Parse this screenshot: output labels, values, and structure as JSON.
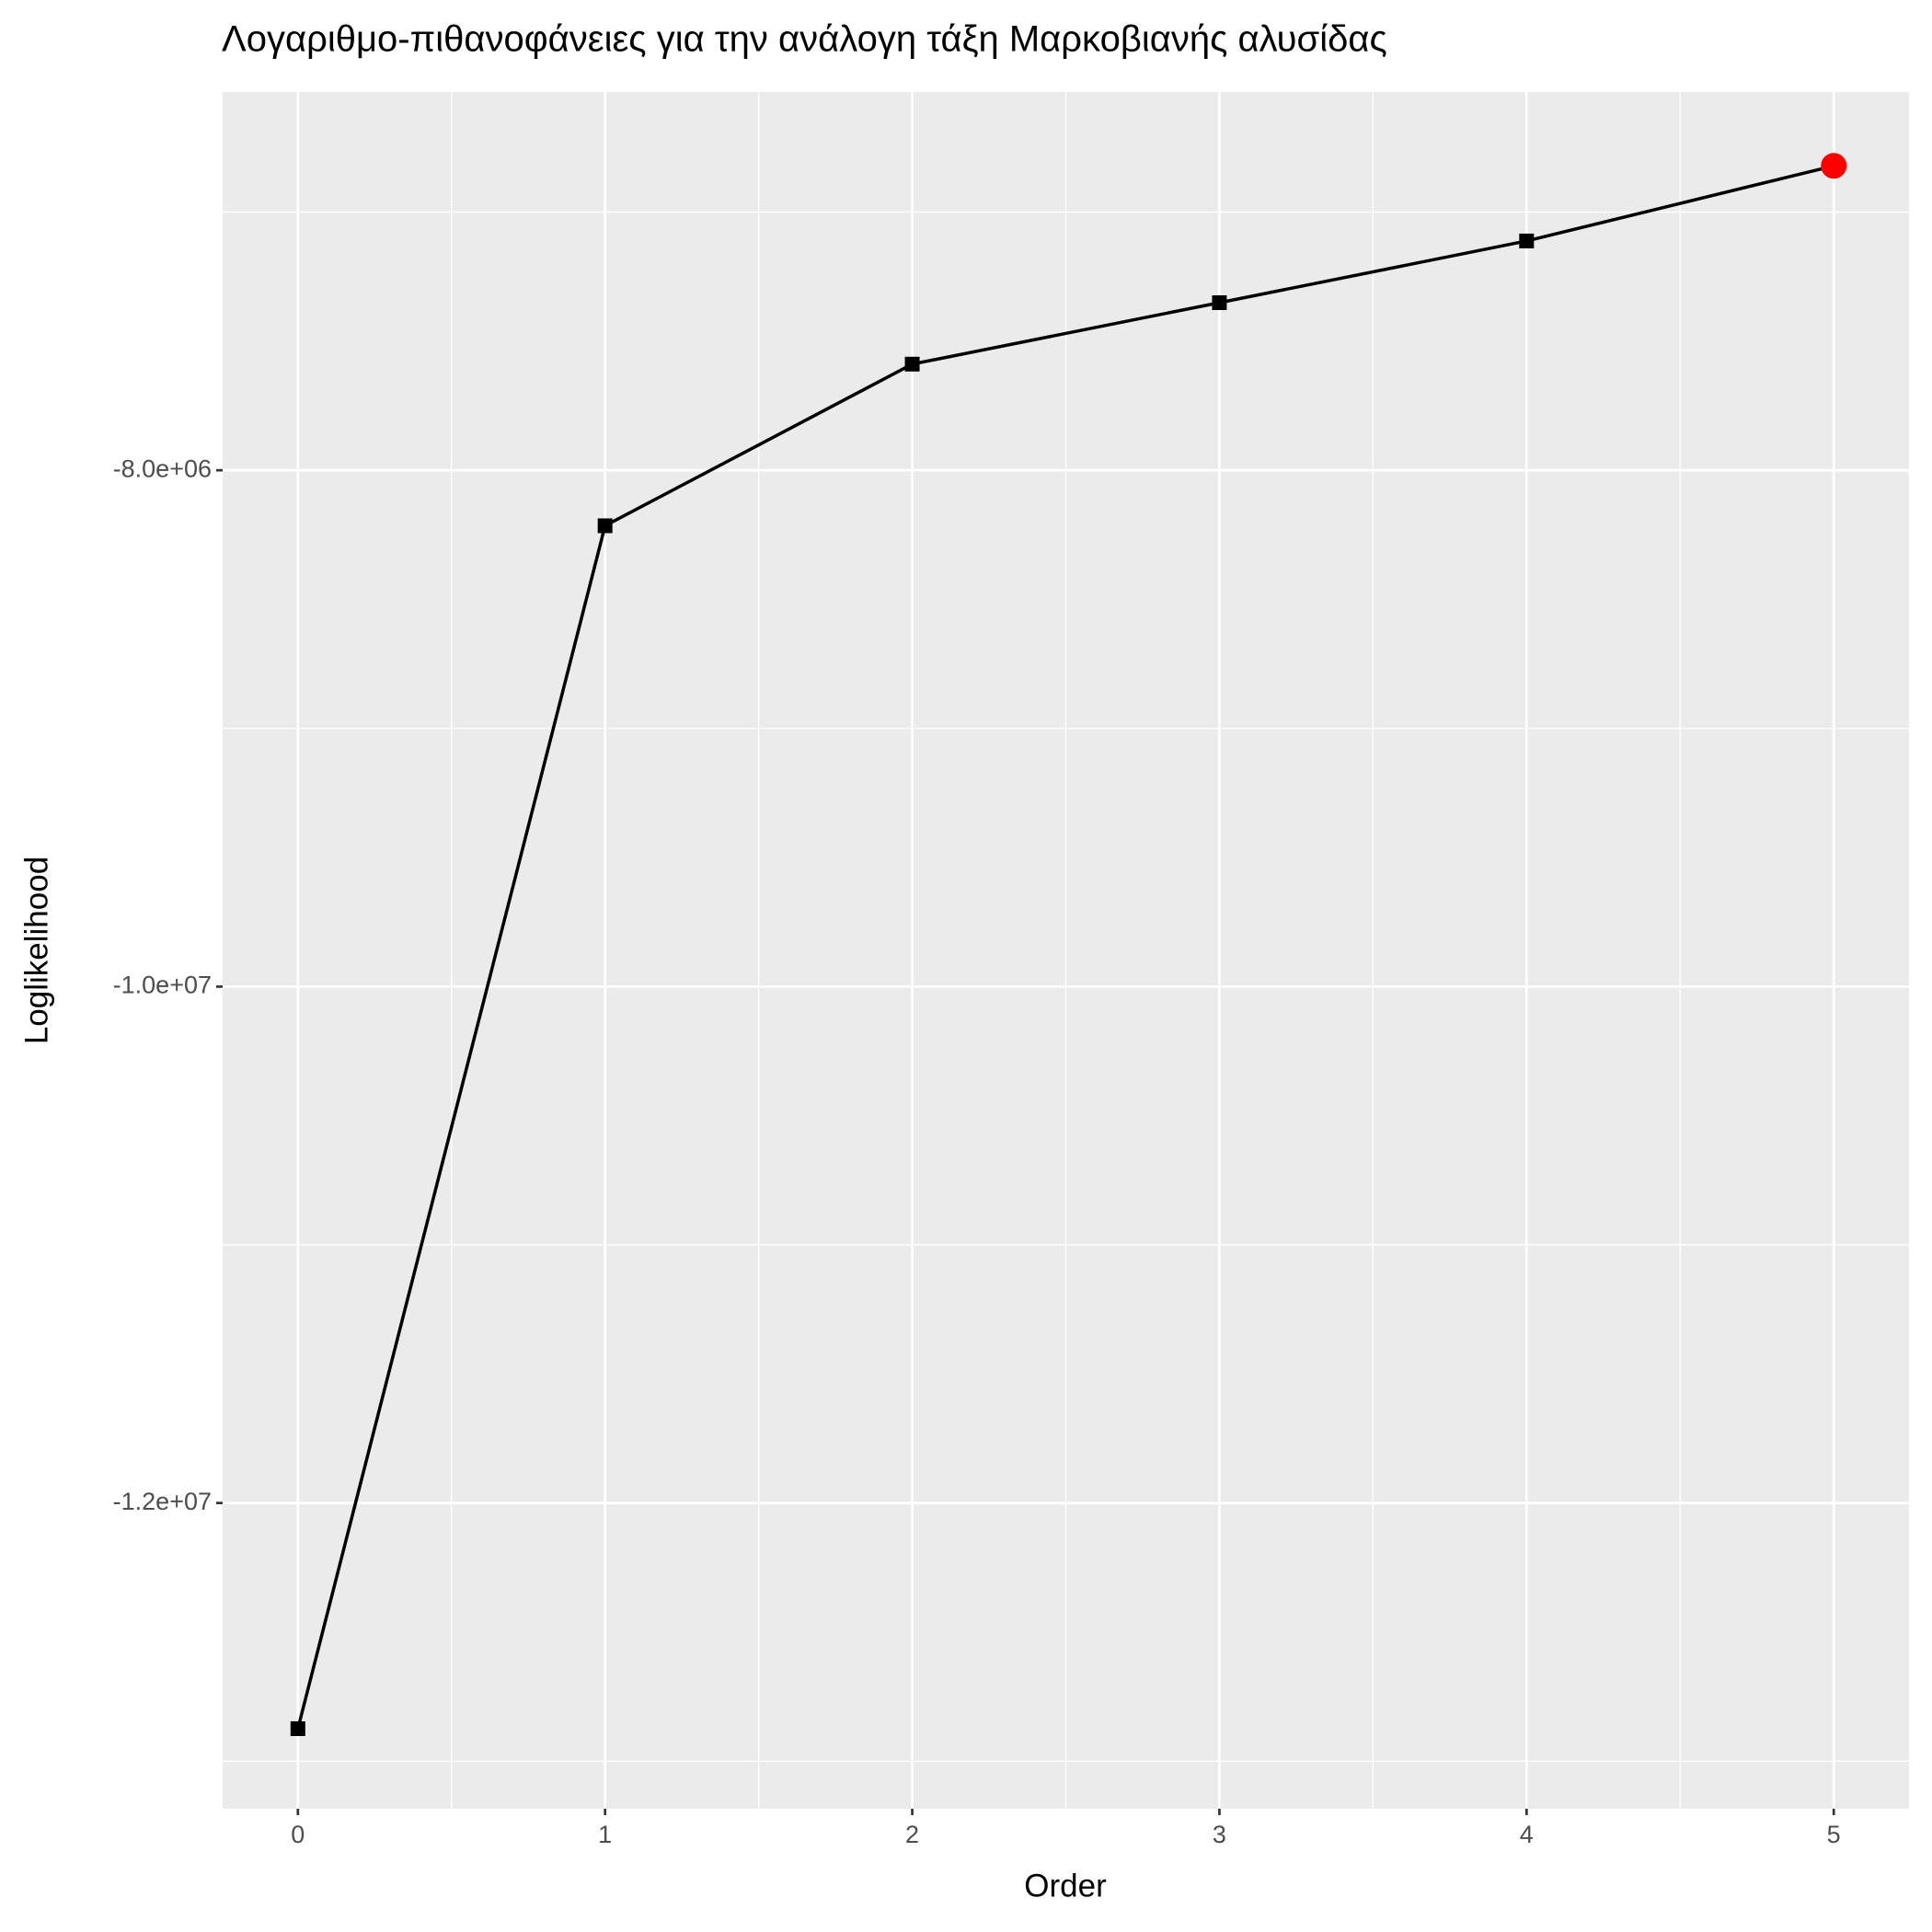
{
  "chart_data": {
    "type": "line",
    "title": "Λογαριθμο-πιθανοφάνειες για την ανάλογη τάξη Μαρκοβιανής αλυσίδας",
    "x_label": "Order",
    "y_label": "Loglikelihood",
    "x": [
      0,
      1,
      2,
      3,
      4,
      5
    ],
    "series": [
      {
        "name": "Loglikelihood",
        "color": "#000000",
        "values": [
          -12874000,
          -8215000,
          -7589000,
          -7351000,
          -7112000,
          -6821000
        ]
      }
    ],
    "highlight_index": 5,
    "highlight_color": "#ff0000",
    "xlim": [
      -0.245,
      5.245
    ],
    "xticks": [
      0,
      1,
      2,
      3,
      4,
      5
    ],
    "ylim": [
      -13184000,
      -6535000
    ],
    "yticks": [
      {
        "value": -12000000,
        "label": "-1.2e+07"
      },
      {
        "value": -10000000,
        "label": "-1.0e+07"
      },
      {
        "value": -8000000,
        "label": "-8.0e+06"
      }
    ],
    "grid": true,
    "legend": false
  }
}
